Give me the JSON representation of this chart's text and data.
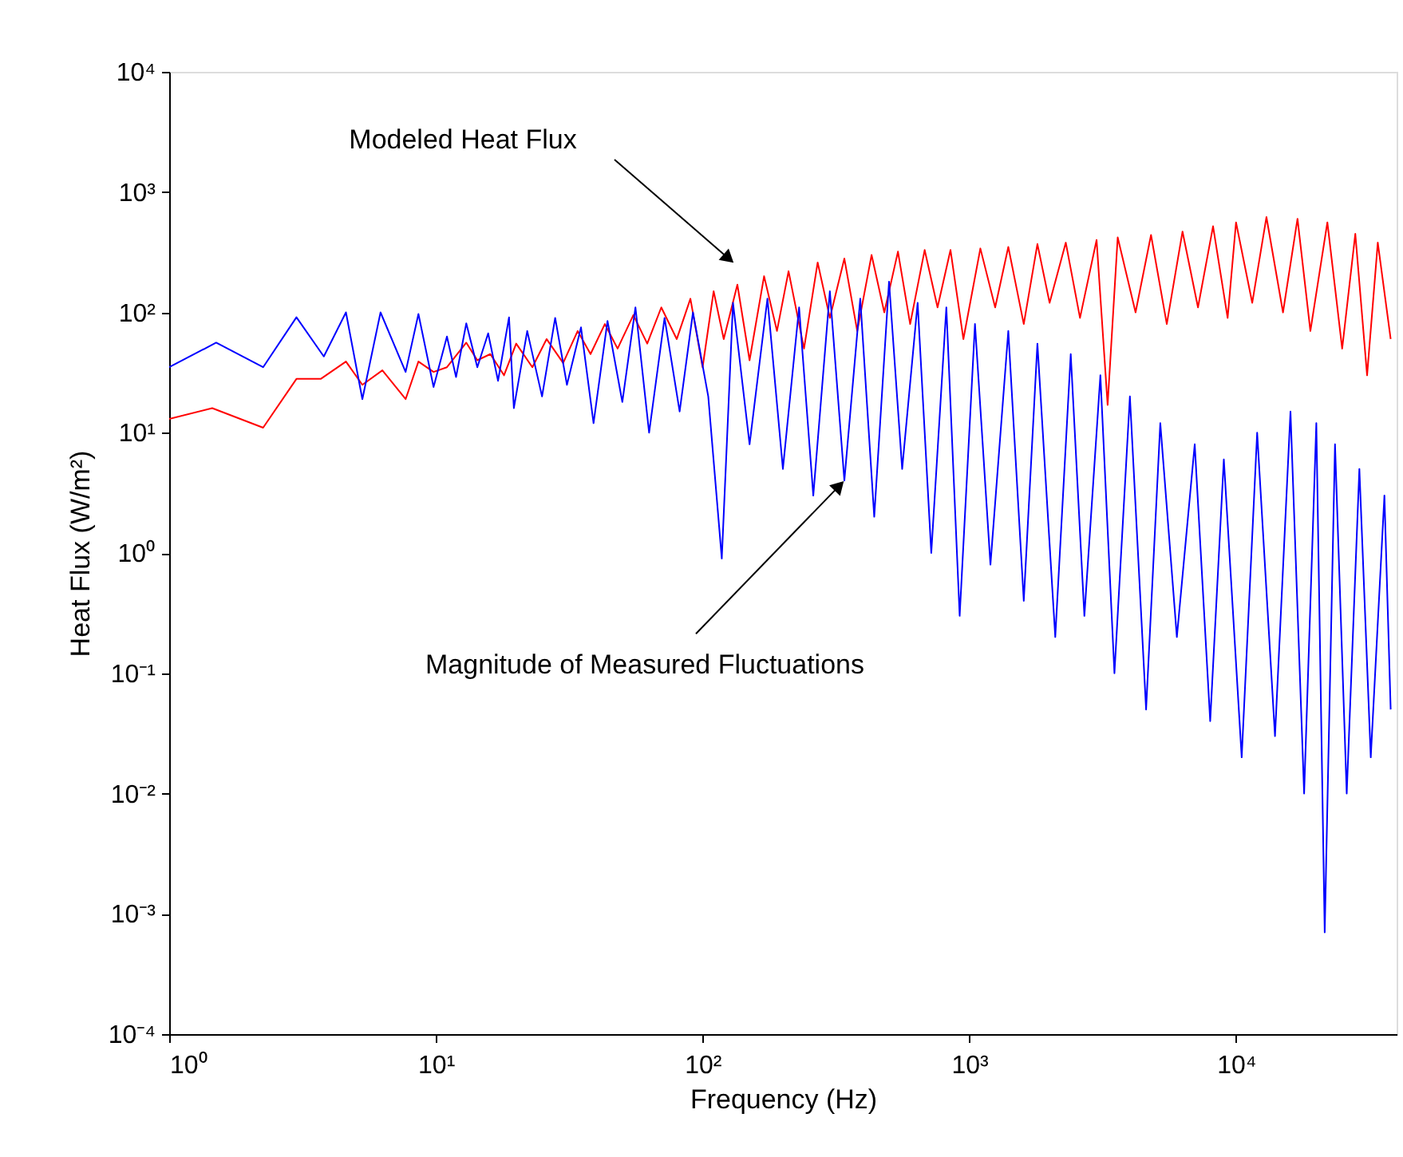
{
  "chart_data": {
    "type": "line",
    "xlabel": "Frequency (Hz)",
    "ylabel": "Heat Flux (W/m²)",
    "log": "xy",
    "grid": false,
    "line_style": "solid",
    "xlim": [
      1,
      40000
    ],
    "ylim": [
      0.0001,
      10000
    ],
    "xticks": [
      {
        "value": 1,
        "label": "10⁰"
      },
      {
        "value": 10,
        "label": "10¹"
      },
      {
        "value": 100,
        "label": "10²"
      },
      {
        "value": 1000,
        "label": "10³"
      },
      {
        "value": 10000,
        "label": "10⁴"
      }
    ],
    "yticks": [
      {
        "value": 0.0001,
        "label": "10⁻⁴"
      },
      {
        "value": 0.001,
        "label": "10⁻³"
      },
      {
        "value": 0.01,
        "label": "10⁻²"
      },
      {
        "value": 0.1,
        "label": "10⁻¹"
      },
      {
        "value": 1,
        "label": "10⁰"
      },
      {
        "value": 10,
        "label": "10¹"
      },
      {
        "value": 100,
        "label": "10²"
      },
      {
        "value": 1000,
        "label": "10³"
      },
      {
        "value": 10000,
        "label": "10⁴"
      }
    ],
    "series": [
      {
        "color": "#ff0000",
        "x": [
          1,
          1.45,
          2.25,
          3.0,
          3.7,
          4.6,
          5.3,
          6.3,
          7.7,
          8.6,
          9.8,
          11,
          13,
          14.3,
          16,
          18,
          20,
          23,
          26,
          30,
          34,
          38,
          43,
          48,
          55,
          62,
          70,
          80,
          90,
          100,
          110,
          120,
          135,
          150,
          170,
          190,
          210,
          240,
          270,
          300,
          340,
          380,
          430,
          480,
          540,
          600,
          680,
          760,
          850,
          950,
          1100,
          1250,
          1400,
          1600,
          1800,
          2000,
          2300,
          2600,
          3000,
          3300,
          3600,
          4200,
          4800,
          5500,
          6300,
          7200,
          8200,
          9300,
          10000,
          11500,
          13000,
          15000,
          17000,
          19000,
          22000,
          25000,
          28000,
          31000,
          34000,
          38000
        ],
        "values": [
          13,
          16,
          11,
          28,
          28,
          39,
          25,
          33,
          19,
          39,
          32,
          35,
          56,
          40,
          45,
          30,
          55,
          35,
          60,
          38,
          70,
          45,
          80,
          50,
          95,
          55,
          110,
          60,
          130,
          35,
          150,
          60,
          170,
          40,
          200,
          70,
          220,
          50,
          260,
          90,
          280,
          70,
          300,
          100,
          320,
          80,
          330,
          110,
          330,
          60,
          340,
          110,
          350,
          80,
          370,
          120,
          380,
          90,
          400,
          17,
          420,
          100,
          440,
          80,
          470,
          110,
          520,
          90,
          560,
          120,
          620,
          100,
          600,
          70,
          560,
          50,
          450,
          30,
          380,
          60
        ]
      },
      {
        "color": "#0000ff",
        "x": [
          1,
          1.5,
          2.25,
          3.0,
          3.8,
          4.6,
          5.3,
          6.2,
          7.7,
          8.6,
          9.8,
          11,
          11.9,
          13,
          14.3,
          15.7,
          17.1,
          18.8,
          19.6,
          22,
          25,
          28,
          31,
          35,
          39,
          44,
          50,
          56,
          63,
          72,
          82,
          92,
          105,
          118,
          130,
          150,
          175,
          200,
          230,
          260,
          300,
          340,
          390,
          440,
          500,
          560,
          640,
          720,
          820,
          920,
          1050,
          1200,
          1400,
          1600,
          1800,
          2100,
          2400,
          2700,
          3100,
          3500,
          4000,
          4600,
          5200,
          6000,
          7000,
          8000,
          9000,
          10500,
          12000,
          14000,
          16000,
          18000,
          20000,
          21500,
          23500,
          26000,
          29000,
          32000,
          36000,
          38000
        ],
        "values": [
          35,
          56,
          35,
          91,
          43,
          100,
          19,
          100,
          32,
          97,
          24,
          63,
          29,
          81,
          35,
          67,
          27,
          91,
          16,
          70,
          20,
          90,
          25,
          75,
          12,
          85,
          18,
          110,
          10,
          90,
          15,
          100,
          20,
          0.9,
          120,
          8,
          130,
          5,
          110,
          3,
          150,
          4,
          130,
          2,
          180,
          5,
          120,
          1,
          110,
          0.3,
          80,
          0.8,
          70,
          0.4,
          55,
          0.2,
          45,
          0.3,
          30,
          0.1,
          20,
          0.05,
          12,
          0.2,
          8,
          0.04,
          6,
          0.02,
          10,
          0.03,
          15,
          0.01,
          12,
          0.0007,
          8,
          0.01,
          5,
          0.02,
          3,
          0.05
        ]
      }
    ],
    "annotations": [
      "Modeled Heat Flux",
      {
        "text": "Magnitude of Measured Fluctuations",
        "x": 340,
        "y": 4
      }
    ]
  }
}
